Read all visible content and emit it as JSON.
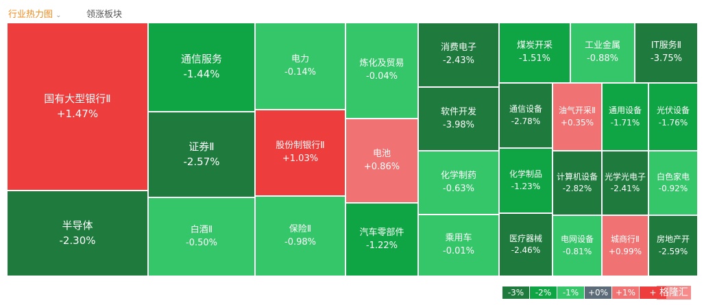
{
  "tabs": [
    "行业热力图",
    "领涨板块"
  ],
  "tiles": [
    {
      "name": "国有大型银行Ⅱ",
      "change": "+1.47%"
    },
    {
      "name": "半导体",
      "change": "-2.30%"
    },
    {
      "name": "通信服务",
      "change": "-1.44%"
    },
    {
      "name": "证券Ⅱ",
      "change": "-2.57%"
    },
    {
      "name": "白酒Ⅱ",
      "change": "-0.50%"
    },
    {
      "name": "电力",
      "change": "-0.14%"
    },
    {
      "name": "股份制银行Ⅱ",
      "change": "+1.03%"
    },
    {
      "name": "保险Ⅱ",
      "change": "-0.98%"
    },
    {
      "name": "炼化及贸易",
      "change": "-0.04%"
    },
    {
      "name": "电池",
      "change": "+0.86%"
    },
    {
      "name": "汽车零部件",
      "change": "-1.22%"
    },
    {
      "name": "消费电子",
      "change": "-2.43%"
    },
    {
      "name": "软件开发",
      "change": "-3.98%"
    },
    {
      "name": "化学制药",
      "change": "-0.63%"
    },
    {
      "name": "乘用车",
      "change": "-0.01%"
    },
    {
      "name": "煤炭开采",
      "change": "-1.51%"
    },
    {
      "name": "工业金属",
      "change": "-0.88%"
    },
    {
      "name": "IT服务Ⅱ",
      "change": "-3.75%"
    },
    {
      "name": "通信设备",
      "change": "-2.78%"
    },
    {
      "name": "油气开采Ⅱ",
      "change": "+0.35%"
    },
    {
      "name": "通用设备",
      "change": "-1.71%"
    },
    {
      "name": "光伏设备",
      "change": "-1.76%"
    },
    {
      "name": "化学制品",
      "change": "-1.23%"
    },
    {
      "name": "计算机设备",
      "change": "-2.82%"
    },
    {
      "name": "光学光电子",
      "change": "-2.41%"
    },
    {
      "name": "白色家电",
      "change": "-0.92%"
    },
    {
      "name": "医疗器械",
      "change": "-2.46%"
    },
    {
      "name": "电网设备",
      "change": "-0.81%"
    },
    {
      "name": "城商行Ⅱ",
      "change": "+0.99%"
    },
    {
      "name": "房地产开",
      "change": "-2.59%"
    }
  ],
  "legend": [
    "-3%",
    "-2%",
    "-1%",
    "+0%",
    "+1%",
    "+"
  ],
  "logo": "格隆汇"
}
